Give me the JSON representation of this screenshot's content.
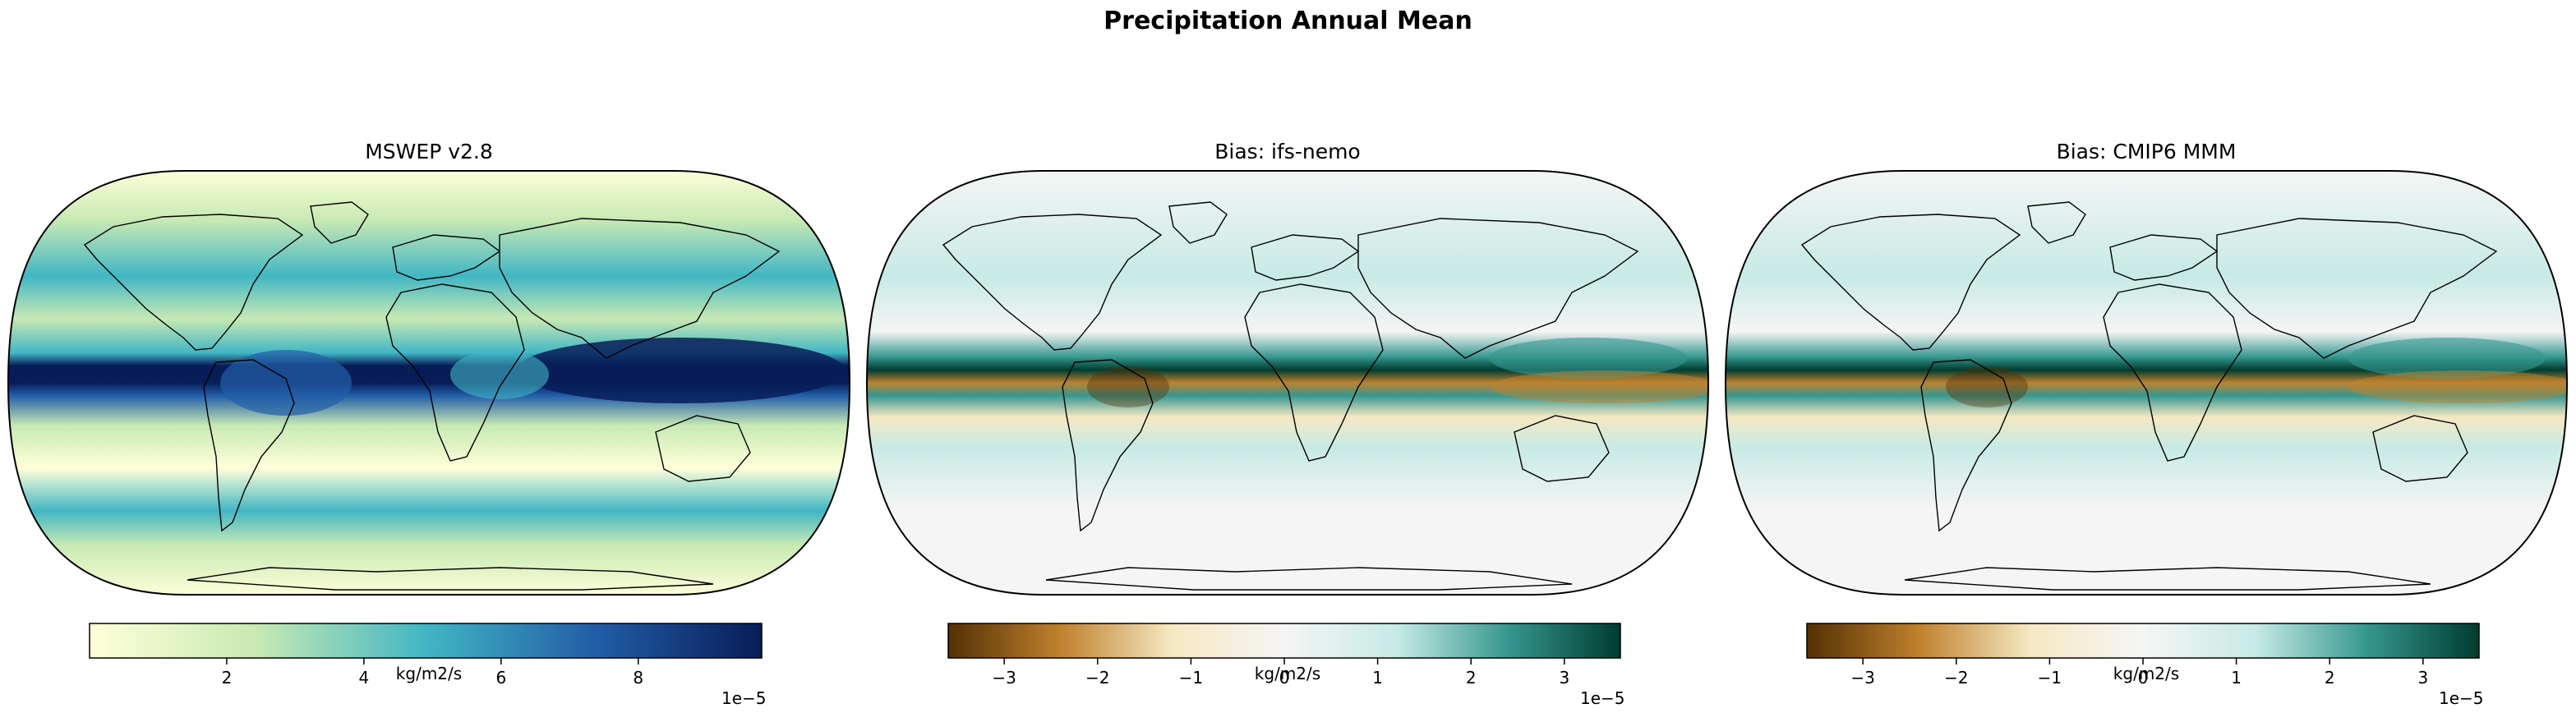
{
  "figure": {
    "title": "Precipitation Annual Mean"
  },
  "panels": [
    {
      "id": "mswep",
      "title": "MSWEP v2.8",
      "colormap": "YlGnBu",
      "colors": [
        "#ffffd9",
        "#c7e9b4",
        "#41b6c4",
        "#225ea8",
        "#081d58"
      ],
      "colorbar": {
        "range": [
          0,
          9.8
        ],
        "ticks": [
          2,
          4,
          6,
          8
        ],
        "tick_labels": [
          "2",
          "4",
          "6",
          "8"
        ],
        "label": "kg/m2/s",
        "offset": "1e−5"
      }
    },
    {
      "id": "ifs-nemo",
      "title": "Bias: ifs-nemo",
      "colormap": "BrBG",
      "colors": [
        "#543005",
        "#bf812d",
        "#f6e8c3",
        "#f5f5f5",
        "#c7eae5",
        "#35978f",
        "#003c30"
      ],
      "colorbar": {
        "range": [
          -3.6,
          3.6
        ],
        "ticks": [
          -3,
          -2,
          -1,
          0,
          1,
          2,
          3
        ],
        "tick_labels": [
          "−3",
          "−2",
          "−1",
          "0",
          "1",
          "2",
          "3"
        ],
        "label": "kg/m2/s",
        "offset": "1e−5"
      }
    },
    {
      "id": "cmip6",
      "title": "Bias: CMIP6 MMM",
      "colormap": "BrBG",
      "colors": [
        "#543005",
        "#bf812d",
        "#f6e8c3",
        "#f5f5f5",
        "#c7eae5",
        "#35978f",
        "#003c30"
      ],
      "colorbar": {
        "range": [
          -3.6,
          3.6
        ],
        "ticks": [
          -3,
          -2,
          -1,
          0,
          1,
          2,
          3
        ],
        "tick_labels": [
          "−3",
          "−2",
          "−1",
          "0",
          "1",
          "2",
          "3"
        ],
        "label": "kg/m2/s",
        "offset": "1e−5"
      }
    }
  ]
}
